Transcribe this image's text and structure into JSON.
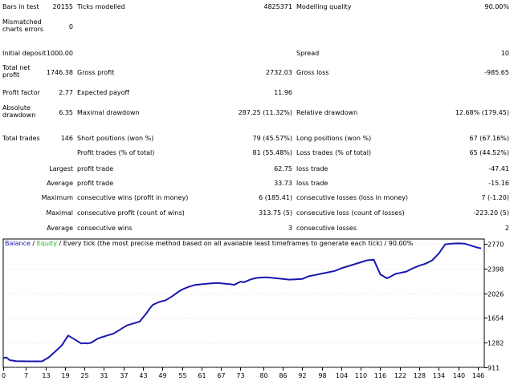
{
  "report": {
    "rows": [
      {
        "y": 4,
        "cells": [
          {
            "col": "l1",
            "text": "Bars in test",
            "name": "bars-in-test-label"
          },
          {
            "col": "v1",
            "text": "20155",
            "name": "bars-in-test-value"
          },
          {
            "col": "l2",
            "text": "Ticks modelled",
            "name": "ticks-modelled-label"
          },
          {
            "col": "v2",
            "text": "4825371",
            "name": "ticks-modelled-value"
          },
          {
            "col": "l3",
            "text": "Modelling quality",
            "name": "modelling-quality-label"
          },
          {
            "col": "v3",
            "text": "90.00%",
            "name": "modelling-quality-value"
          }
        ]
      },
      {
        "y": 29,
        "cells": [
          {
            "col": "l1w",
            "text": "Mismatched charts errors",
            "name": "mismatched-charts-errors-label"
          },
          {
            "col": "v1",
            "text": "0",
            "name": "mismatched-charts-errors-value"
          }
        ]
      },
      {
        "y": 62,
        "cells": [
          {
            "col": "l1",
            "text": "Initial deposit",
            "name": "initial-deposit-label"
          },
          {
            "col": "v1",
            "text": "1000.00",
            "name": "initial-deposit-value"
          },
          {
            "col": "l3",
            "text": "Spread",
            "name": "spread-label"
          },
          {
            "col": "v3",
            "text": "10",
            "name": "spread-value"
          }
        ]
      },
      {
        "y": 86,
        "cells": [
          {
            "col": "l1w",
            "text": "Total net profit",
            "name": "total-net-profit-label"
          },
          {
            "col": "v1",
            "text": "1746.38",
            "name": "total-net-profit-value"
          },
          {
            "col": "l2",
            "text": "Gross profit",
            "name": "gross-profit-label"
          },
          {
            "col": "v2",
            "text": "2732.03",
            "name": "gross-profit-value"
          },
          {
            "col": "l3",
            "text": "Gross loss",
            "name": "gross-loss-label"
          },
          {
            "col": "v3",
            "text": "-985.65",
            "name": "gross-loss-value"
          }
        ]
      },
      {
        "y": 111,
        "cells": [
          {
            "col": "l1",
            "text": "Profit factor",
            "name": "profit-factor-label"
          },
          {
            "col": "v1",
            "text": "2.77",
            "name": "profit-factor-value"
          },
          {
            "col": "l2",
            "text": "Expected payoff",
            "name": "expected-payoff-label"
          },
          {
            "col": "v2",
            "text": "11.96",
            "name": "expected-payoff-value"
          }
        ]
      },
      {
        "y": 136,
        "cells": [
          {
            "col": "l1w",
            "text": "Absolute drawdown",
            "name": "absolute-drawdown-label"
          },
          {
            "col": "v1",
            "text": "6.35",
            "name": "absolute-drawdown-value"
          },
          {
            "col": "l2",
            "text": "Maximal drawdown",
            "name": "maximal-drawdown-label"
          },
          {
            "col": "v2",
            "text": "287.25 (11.32%)",
            "name": "maximal-drawdown-value"
          },
          {
            "col": "l3",
            "text": "Relative drawdown",
            "name": "relative-drawdown-label"
          },
          {
            "col": "v3",
            "text": "12.68% (179.45)",
            "name": "relative-drawdown-value"
          }
        ]
      },
      {
        "y": 168,
        "cells": [
          {
            "col": "l1",
            "text": "Total trades",
            "name": "total-trades-label"
          },
          {
            "col": "v1",
            "text": "146",
            "name": "total-trades-value"
          },
          {
            "col": "l2",
            "text": "Short positions (won %)",
            "name": "short-positions-label"
          },
          {
            "col": "v2",
            "text": "79 (45.57%)",
            "name": "short-positions-value"
          },
          {
            "col": "l3",
            "text": "Long positions (won %)",
            "name": "long-positions-label"
          },
          {
            "col": "v3",
            "text": "67 (67.16%)",
            "name": "long-positions-value"
          }
        ]
      },
      {
        "y": 186,
        "cells": [
          {
            "col": "l2",
            "text": "Profit trades (% of total)",
            "name": "profit-trades-label"
          },
          {
            "col": "v2",
            "text": "81 (55.48%)",
            "name": "profit-trades-value"
          },
          {
            "col": "l3",
            "text": "Loss trades (% of total)",
            "name": "loss-trades-label"
          },
          {
            "col": "v3",
            "text": "65 (44.52%)",
            "name": "loss-trades-value"
          }
        ]
      },
      {
        "y": 206,
        "cells": [
          {
            "col": "v1",
            "text": "Largest",
            "name": "largest-label"
          },
          {
            "col": "l2",
            "text": "profit trade",
            "name": "largest-profit-trade-label"
          },
          {
            "col": "v2",
            "text": "62.75",
            "name": "largest-profit-trade-value"
          },
          {
            "col": "l3",
            "text": "loss trade",
            "name": "largest-loss-trade-label"
          },
          {
            "col": "v3",
            "text": "-47.41",
            "name": "largest-loss-trade-value"
          }
        ]
      },
      {
        "y": 224,
        "cells": [
          {
            "col": "v1",
            "text": "Average",
            "name": "average-label"
          },
          {
            "col": "l2",
            "text": "profit trade",
            "name": "average-profit-trade-label"
          },
          {
            "col": "v2",
            "text": "33.73",
            "name": "average-profit-trade-value"
          },
          {
            "col": "l3",
            "text": "loss trade",
            "name": "average-loss-trade-label"
          },
          {
            "col": "v3",
            "text": "-15.16",
            "name": "average-loss-trade-value"
          }
        ]
      },
      {
        "y": 242,
        "cells": [
          {
            "col": "v1",
            "text": "Maximum",
            "name": "maximum-label"
          },
          {
            "col": "l2",
            "text": "consecutive wins (profit in money)",
            "name": "max-consecutive-wins-label"
          },
          {
            "col": "v2",
            "text": "6 (185.41)",
            "name": "max-consecutive-wins-value"
          },
          {
            "col": "l3",
            "text": "consecutive losses (loss in money)",
            "name": "max-consecutive-losses-label"
          },
          {
            "col": "v3",
            "text": "7 (-1.20)",
            "name": "max-consecutive-losses-value"
          }
        ]
      },
      {
        "y": 261,
        "cells": [
          {
            "col": "v1",
            "text": "Maximal",
            "name": "maximal-label"
          },
          {
            "col": "l2",
            "text": "consecutive profit (count of wins)",
            "name": "maximal-consecutive-profit-label"
          },
          {
            "col": "v2",
            "text": "313.75 (5)",
            "name": "maximal-consecutive-profit-value"
          },
          {
            "col": "l3",
            "text": "consecutive loss (count of losses)",
            "name": "maximal-consecutive-loss-label"
          },
          {
            "col": "v3",
            "text": "-223.20 (5)",
            "name": "maximal-consecutive-loss-value"
          }
        ]
      },
      {
        "y": 280,
        "cells": [
          {
            "col": "v1",
            "text": "Average",
            "name": "average-consecutive-label"
          },
          {
            "col": "l2",
            "text": "consecutive wins",
            "name": "average-consecutive-wins-label"
          },
          {
            "col": "v2",
            "text": "3",
            "name": "average-consecutive-wins-value"
          },
          {
            "col": "l3",
            "text": "consecutive losses",
            "name": "average-consecutive-losses-label"
          },
          {
            "col": "v3",
            "text": "2",
            "name": "average-consecutive-losses-value"
          }
        ]
      }
    ]
  },
  "legend": {
    "balance": "Balance",
    "sep1": " / ",
    "equity": "Equity",
    "rest": " / Every tick (the most precise method based on all available least timeframes to generate each tick) / 90.00%"
  },
  "colors": {
    "balance": "#1818b0",
    "equity": "#28b428",
    "grid": "#c8c8c8",
    "frame": "#000000"
  },
  "chart_data": {
    "type": "line",
    "x_ticks": [
      0,
      7,
      13,
      19,
      25,
      31,
      37,
      43,
      49,
      55,
      61,
      67,
      73,
      80,
      86,
      92,
      98,
      104,
      110,
      116,
      122,
      128,
      134,
      140,
      146
    ],
    "y_ticks": [
      911,
      1282,
      1654,
      2026,
      2398,
      2770
    ],
    "xlim": [
      0,
      148
    ],
    "ylim": [
      911,
      2840
    ],
    "series": [
      {
        "name": "Balance",
        "x": [
          0,
          1,
          2,
          4,
          6,
          8,
          10,
          12,
          14,
          16,
          18,
          20,
          22,
          24,
          25,
          26,
          27,
          28,
          29,
          30,
          32,
          34,
          36,
          38,
          40,
          42,
          43,
          44,
          45,
          46,
          48,
          50,
          52,
          54,
          55,
          57,
          59,
          61,
          63,
          64,
          66,
          68,
          70,
          71,
          72,
          73,
          74,
          75,
          76,
          77,
          78,
          79,
          81,
          82,
          84,
          86,
          88,
          90,
          92,
          93,
          94,
          96,
          98,
          100,
          102,
          103,
          104,
          106,
          108,
          110,
          112,
          114,
          115,
          116,
          118,
          119,
          120,
          121,
          122,
          123,
          124,
          126,
          128,
          130,
          132,
          134,
          136,
          138,
          140,
          142,
          144,
          146,
          147
        ],
        "y": [
          1050,
          1060,
          1020,
          1005,
          1003,
          1002,
          1001,
          1003,
          1060,
          1150,
          1240,
          1390,
          1330,
          1270,
          1275,
          1270,
          1280,
          1310,
          1340,
          1360,
          1390,
          1420,
          1480,
          1540,
          1570,
          1600,
          1660,
          1720,
          1790,
          1850,
          1895,
          1920,
          1980,
          2050,
          2080,
          2120,
          2150,
          2160,
          2170,
          2175,
          2180,
          2170,
          2160,
          2150,
          2175,
          2200,
          2190,
          2210,
          2230,
          2245,
          2255,
          2260,
          2265,
          2260,
          2250,
          2240,
          2230,
          2235,
          2240,
          2260,
          2280,
          2300,
          2320,
          2340,
          2360,
          2380,
          2400,
          2430,
          2460,
          2490,
          2520,
          2530,
          2420,
          2310,
          2250,
          2270,
          2300,
          2320,
          2330,
          2340,
          2350,
          2400,
          2440,
          2470,
          2520,
          2620,
          2760,
          2770,
          2775,
          2770,
          2740,
          2710,
          2700
        ]
      }
    ]
  }
}
